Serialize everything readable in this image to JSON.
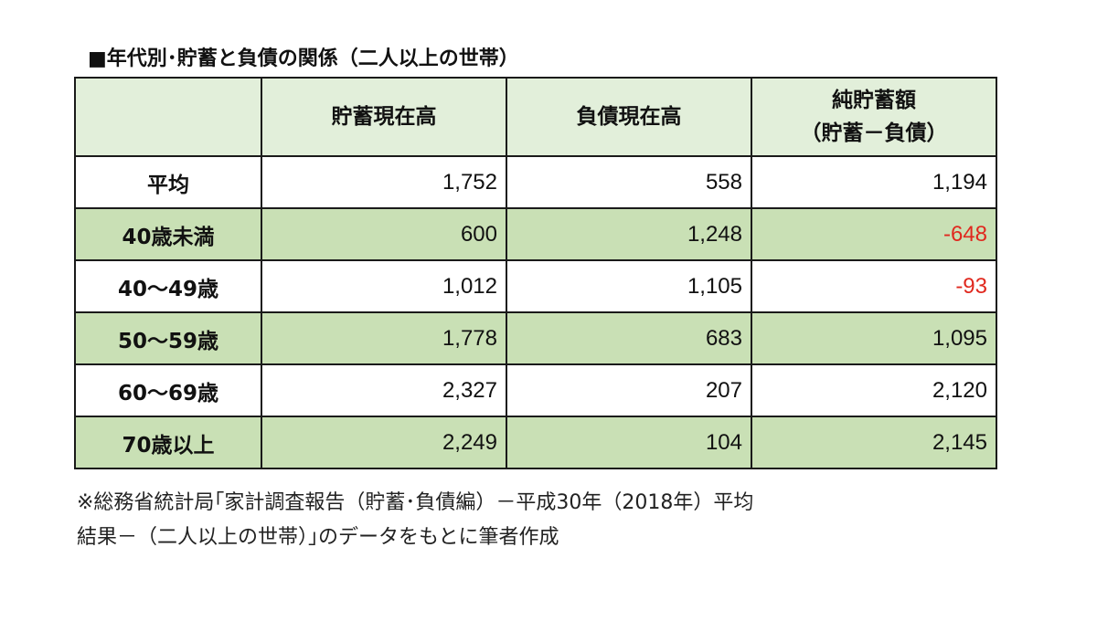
{
  "title": "■年代別･貯蓄と負債の関係（二人以上の世帯）",
  "chart_data": {
    "type": "table",
    "columns": [
      "",
      "貯蓄現在高",
      "負債現在高",
      [
        "純貯蓄額",
        "（貯蓄－負債）"
      ]
    ],
    "rows": [
      {
        "label": "平均",
        "values": [
          "1,752",
          "558",
          "1,194"
        ],
        "shaded": false
      },
      {
        "label": "40歳未満",
        "values": [
          "600",
          "1,248",
          "-648"
        ],
        "shaded": true
      },
      {
        "label": "40～49歳",
        "values": [
          "1,012",
          "1,105",
          "-93"
        ],
        "shaded": false
      },
      {
        "label": "50～59歳",
        "values": [
          "1,778",
          "683",
          "1,095"
        ],
        "shaded": true
      },
      {
        "label": "60～69歳",
        "values": [
          "2,327",
          "207",
          "2,120"
        ],
        "shaded": false
      },
      {
        "label": "70歳以上",
        "values": [
          "2,249",
          "104",
          "2,145"
        ],
        "shaded": true
      }
    ]
  },
  "colors": {
    "header_bg": "#e2efda",
    "shaded_row_bg": "#c9e0b5",
    "negative_text": "#e0281e",
    "border": "#1a1a1a"
  },
  "note": {
    "line1": "※総務省統計局｢家計調査報告（貯蓄･負債編）－平成30年（2018年）平均",
    "line2": "結果－（二人以上の世帯）｣のデータをもとに筆者作成"
  }
}
